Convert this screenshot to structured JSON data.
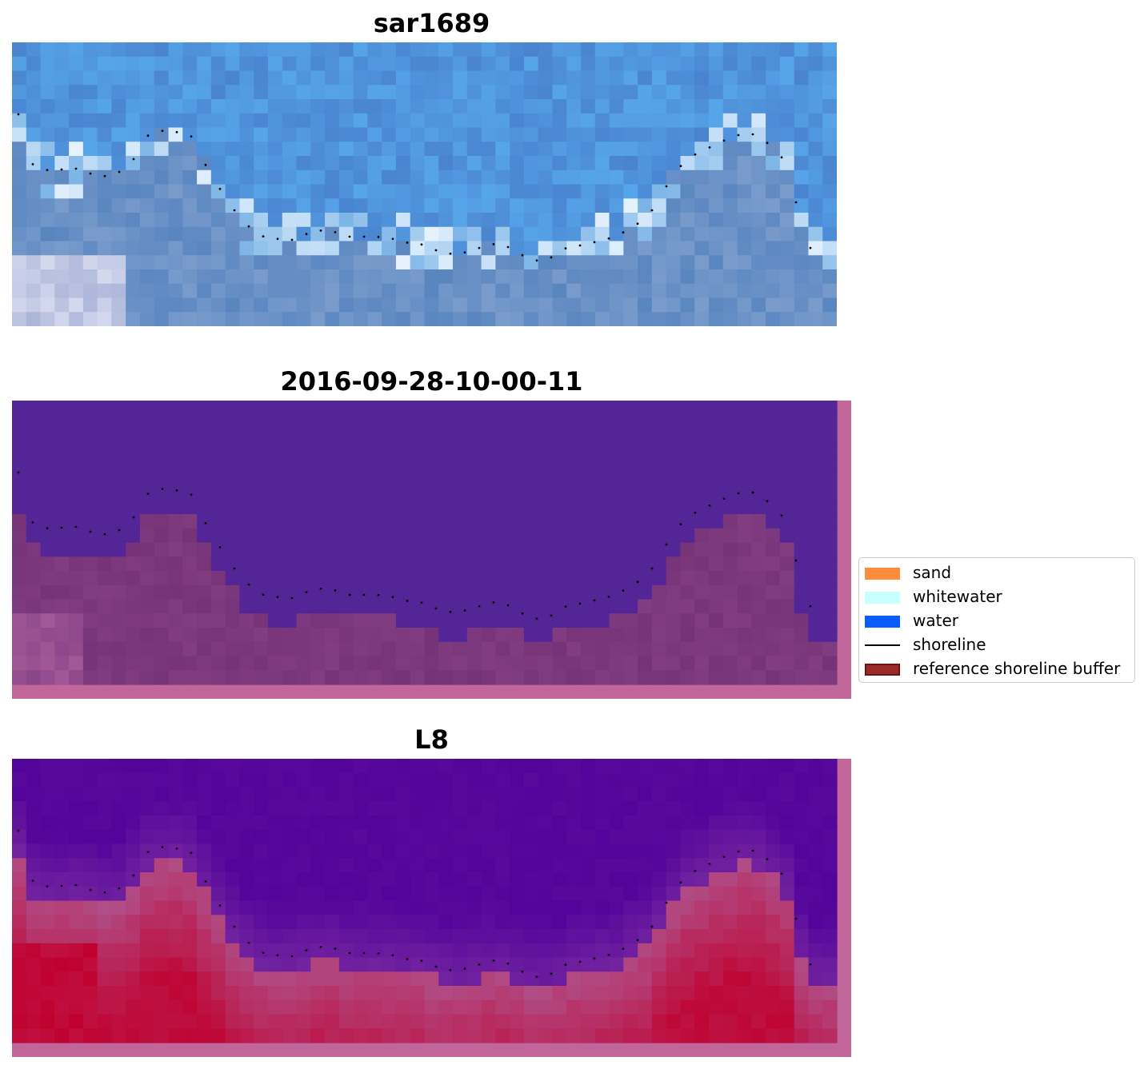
{
  "panels": [
    {
      "title": "sar1689",
      "kind": "rgb"
    },
    {
      "title": "2016-09-28-10-00-11",
      "kind": "classification"
    },
    {
      "title": "L8",
      "kind": "index"
    }
  ],
  "legend": {
    "items": [
      {
        "label": "sand",
        "type": "patch",
        "color": "#ff8c3a"
      },
      {
        "label": "whitewater",
        "type": "patch",
        "color": "#c8ffff"
      },
      {
        "label": "water",
        "type": "patch",
        "color": "#0a5cff"
      },
      {
        "label": "shoreline",
        "type": "line",
        "color": "#000000"
      },
      {
        "label": "reference shoreline buffer",
        "type": "patch",
        "color": "#9b2a2a",
        "edge": "#6e1212"
      }
    ]
  },
  "colors": {
    "rgb_water": "#4a7ec8",
    "classification_water": "#532596",
    "classification_land": "#763377",
    "buffer": "#c0669a",
    "index_low": "#52049b",
    "index_high": "#c0002e",
    "shoreline_dots": "#000000"
  }
}
